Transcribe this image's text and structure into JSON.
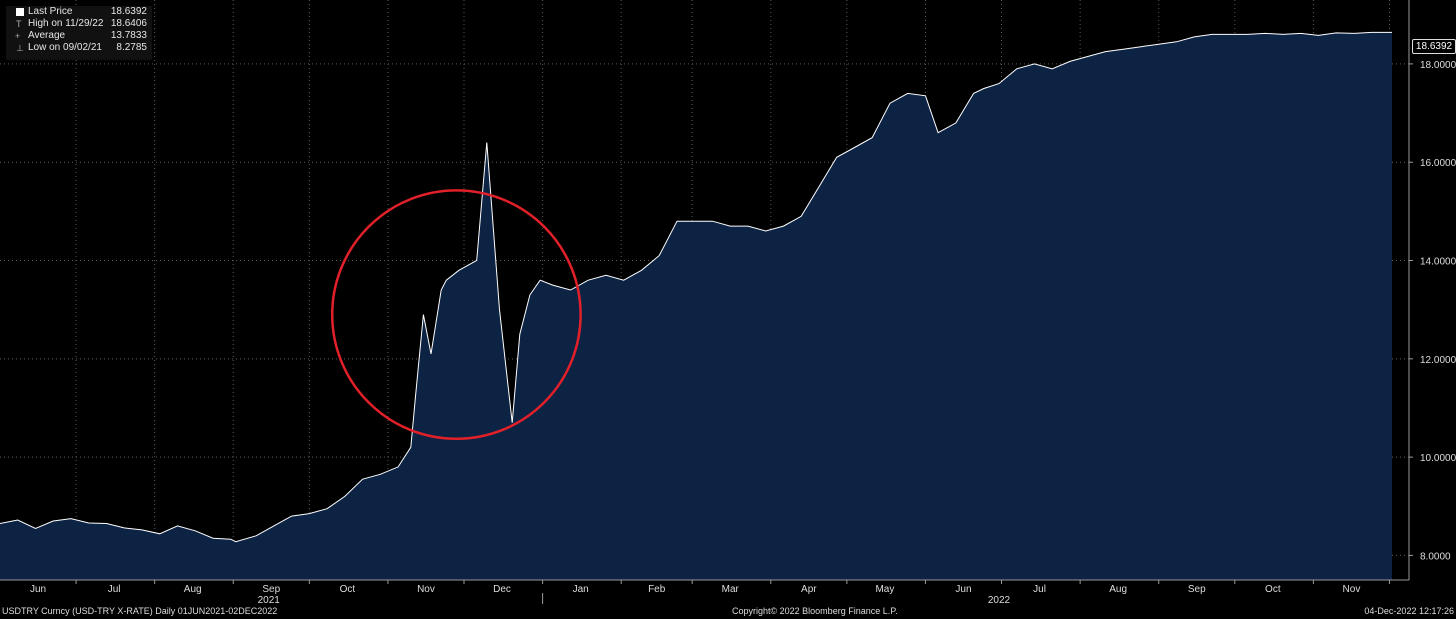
{
  "legend": {
    "items": [
      {
        "label": "Last Price",
        "value": "18.6392"
      },
      {
        "label": "High on 11/29/22",
        "value": "18.6406"
      },
      {
        "label": "Average",
        "value": "13.7833"
      },
      {
        "label": "Low on 09/02/21",
        "value": "8.2785"
      }
    ]
  },
  "last_price_tag": "18.6392",
  "footer": {
    "security": "USDTRY Curncy (USD-TRY X-RATE)  Daily 01JUN2021-02DEC2022",
    "copyright": "Copyright© 2022 Bloomberg Finance L.P.",
    "timestamp": "04-Dec-2022 12:17:26"
  },
  "colors": {
    "background": "#000000",
    "area_fill": "#0d2344",
    "line": "#ffffff",
    "highlight_circle": "#e2202a",
    "grid": "#5a5a5a"
  },
  "chart_data": {
    "type": "area",
    "series": [
      {
        "name": "Last Price",
        "x": [
          "2021-06-01",
          "2021-06-08",
          "2021-06-15",
          "2021-06-22",
          "2021-06-29",
          "2021-07-06",
          "2021-07-13",
          "2021-07-20",
          "2021-07-27",
          "2021-08-03",
          "2021-08-10",
          "2021-08-17",
          "2021-08-24",
          "2021-08-31",
          "2021-09-02",
          "2021-09-10",
          "2021-09-17",
          "2021-09-24",
          "2021-10-01",
          "2021-10-08",
          "2021-10-15",
          "2021-10-22",
          "2021-10-29",
          "2021-11-05",
          "2021-11-10",
          "2021-11-12",
          "2021-11-15",
          "2021-11-18",
          "2021-11-22",
          "2021-11-24",
          "2021-11-29",
          "2021-12-06",
          "2021-12-10",
          "2021-12-15",
          "2021-12-20",
          "2021-12-23",
          "2021-12-27",
          "2021-12-31",
          "2022-01-05",
          "2022-01-12",
          "2022-01-19",
          "2022-01-26",
          "2022-02-02",
          "2022-02-09",
          "2022-02-16",
          "2022-02-23",
          "2022-03-02",
          "2022-03-09",
          "2022-03-16",
          "2022-03-23",
          "2022-03-30",
          "2022-04-06",
          "2022-04-13",
          "2022-04-20",
          "2022-04-27",
          "2022-05-04",
          "2022-05-11",
          "2022-05-18",
          "2022-05-25",
          "2022-06-01",
          "2022-06-06",
          "2022-06-13",
          "2022-06-20",
          "2022-06-24",
          "2022-06-30",
          "2022-07-07",
          "2022-07-14",
          "2022-07-21",
          "2022-07-28",
          "2022-08-04",
          "2022-08-11",
          "2022-08-18",
          "2022-08-25",
          "2022-09-01",
          "2022-09-08",
          "2022-09-15",
          "2022-09-22",
          "2022-09-29",
          "2022-10-06",
          "2022-10-13",
          "2022-10-20",
          "2022-10-27",
          "2022-11-03",
          "2022-11-10",
          "2022-11-17",
          "2022-11-24",
          "2022-11-29",
          "2022-12-02"
        ],
        "values": [
          8.65,
          8.72,
          8.55,
          8.7,
          8.75,
          8.66,
          8.65,
          8.56,
          8.52,
          8.44,
          8.6,
          8.5,
          8.35,
          8.33,
          8.28,
          8.4,
          8.6,
          8.8,
          8.85,
          8.95,
          9.2,
          9.55,
          9.65,
          9.8,
          10.2,
          11.3,
          12.9,
          12.1,
          13.4,
          13.6,
          13.8,
          14.0,
          16.4,
          13.0,
          10.7,
          12.5,
          13.3,
          13.6,
          13.5,
          13.4,
          13.6,
          13.7,
          13.6,
          13.8,
          14.1,
          14.8,
          14.8,
          14.8,
          14.7,
          14.7,
          14.6,
          14.7,
          14.9,
          15.5,
          16.1,
          16.3,
          16.5,
          17.2,
          17.4,
          17.35,
          16.6,
          16.8,
          17.4,
          17.5,
          17.6,
          17.9,
          18.0,
          17.9,
          18.05,
          18.15,
          18.25,
          18.3,
          18.35,
          18.4,
          18.45,
          18.55,
          18.6,
          18.6,
          18.6,
          18.62,
          18.6,
          18.62,
          18.58,
          18.63,
          18.62,
          18.64,
          18.64,
          18.64
        ]
      }
    ],
    "y_ticks": [
      "8.0000",
      "10.0000",
      "12.0000",
      "14.0000",
      "16.0000",
      "18.0000"
    ],
    "ylim": [
      7.5,
      19.3
    ],
    "x_tick_labels": [
      "Jun",
      "Jul",
      "Aug",
      "Sep",
      "Oct",
      "Nov",
      "Dec",
      "Jan",
      "Feb",
      "Mar",
      "Apr",
      "May",
      "Jun",
      "Jul",
      "Aug",
      "Sep",
      "Oct",
      "Nov"
    ],
    "x_tick_dates": [
      "2021-06-16",
      "2021-07-16",
      "2021-08-16",
      "2021-09-16",
      "2021-10-16",
      "2021-11-16",
      "2021-12-16",
      "2022-01-16",
      "2022-02-15",
      "2022-03-16",
      "2022-04-16",
      "2022-05-16",
      "2022-06-16",
      "2022-07-16",
      "2022-08-16",
      "2022-09-16",
      "2022-10-16",
      "2022-11-16"
    ],
    "year_labels": [
      {
        "label": "2021",
        "date": "2021-09-15"
      },
      {
        "label": "2022",
        "date": "2022-06-30"
      }
    ],
    "highlight": {
      "shape": "circle",
      "around": "2021-11 to 2021-12 spike"
    },
    "grid": true,
    "legend": "top-left"
  }
}
